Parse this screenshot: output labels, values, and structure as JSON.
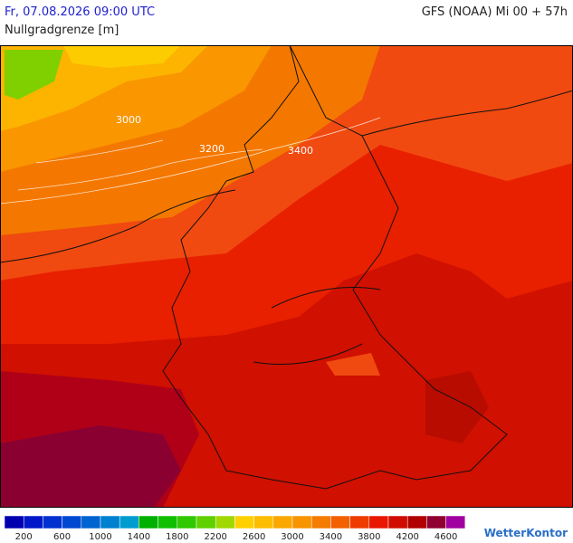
{
  "header": {
    "date": "Fr, 07.08.2026 09:00 UTC",
    "model": "GFS (NOAA) Mi 00 + 57h",
    "parameter": "Nullgradgrenze [m]"
  },
  "map": {
    "contour_labels": [
      "3000",
      "3200",
      "3400"
    ]
  },
  "colorbar": {
    "labels": [
      "200",
      "600",
      "1000",
      "1400",
      "1800",
      "2200",
      "2600",
      "3000",
      "3400",
      "3800",
      "4200",
      "4600"
    ],
    "colors": [
      "#0000b0",
      "#0018c8",
      "#0030d0",
      "#0048d0",
      "#0064d0",
      "#0080d0",
      "#009cd0",
      "#00b000",
      "#10c000",
      "#30c800",
      "#60d000",
      "#a0d800",
      "#ffd000",
      "#fcbc00",
      "#faa800",
      "#f89400",
      "#f47c00",
      "#f26000",
      "#ee3c00",
      "#e81800",
      "#d00c00",
      "#b00000",
      "#900030",
      "#a000a0"
    ]
  },
  "footer": {
    "logo": "WetterKontor"
  }
}
